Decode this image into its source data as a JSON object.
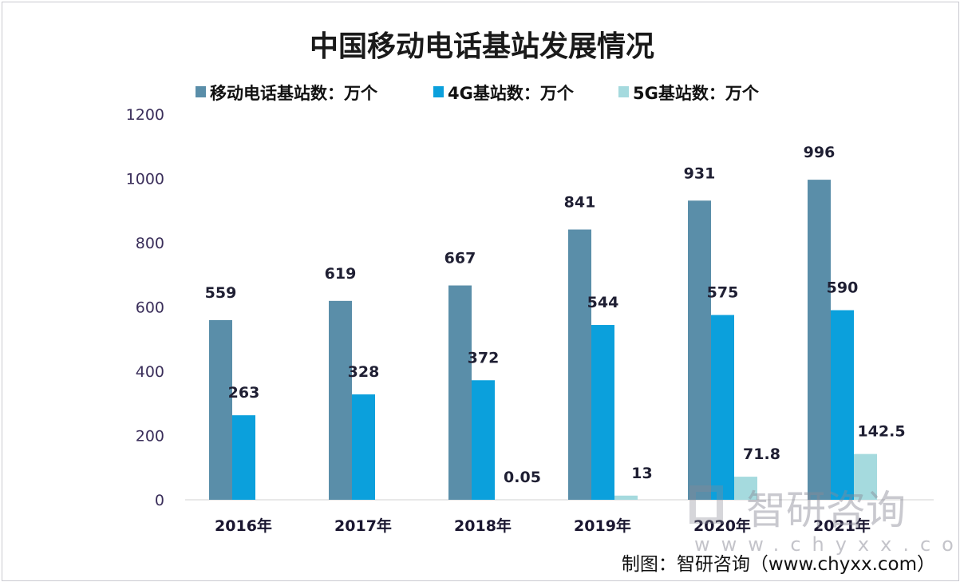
{
  "chart_data": {
    "type": "bar",
    "title": "中国移动电话基站发展情况",
    "categories": [
      "2016年",
      "2017年",
      "2018年",
      "2019年",
      "2020年",
      "2021年"
    ],
    "series": [
      {
        "name": "移动电话基站数：万个",
        "color": "#5a8ea9",
        "values": [
          559,
          619,
          667,
          841,
          931,
          996
        ],
        "labels": [
          "559",
          "619",
          "667",
          "841",
          "931",
          "996"
        ]
      },
      {
        "name": "4G基站数：万个",
        "color": "#0ba0dc",
        "values": [
          263,
          328,
          372,
          544,
          575,
          590
        ],
        "labels": [
          "263",
          "328",
          "372",
          "544",
          "575",
          "590"
        ]
      },
      {
        "name": "5G基站数：万个",
        "color": "#a5dade",
        "values": [
          null,
          null,
          0.05,
          13,
          71.8,
          142.5
        ],
        "labels": [
          "",
          "",
          "0.05",
          "13",
          "71.8",
          "142.5"
        ]
      }
    ],
    "ylim": [
      0,
      1200
    ],
    "yticks": [
      "0",
      "200",
      "400",
      "600",
      "800",
      "1000",
      "1200"
    ],
    "xlabel": "",
    "ylabel": "",
    "grid": false,
    "legend_position": "top"
  },
  "watermark": {
    "text": "智研咨询",
    "url": "www.chyxx.com"
  },
  "source": "制图：智研咨询（www.chyxx.com）"
}
